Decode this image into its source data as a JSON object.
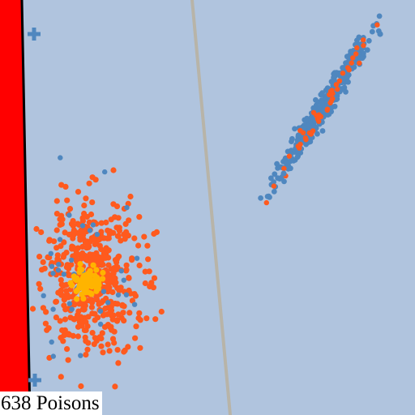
{
  "hud": {
    "poison_count": "638 Poisons"
  },
  "colors": {
    "background": "#b0c4de",
    "wall": "#ff0000",
    "wall_edge": "#000000",
    "trail": "#b8b4a8",
    "blue_agent": "#4f87bf",
    "orange_agent": "#ff5a1e",
    "yellow_core": "#ffb400"
  },
  "icons": {
    "marker": "plus-marker-icon"
  }
}
